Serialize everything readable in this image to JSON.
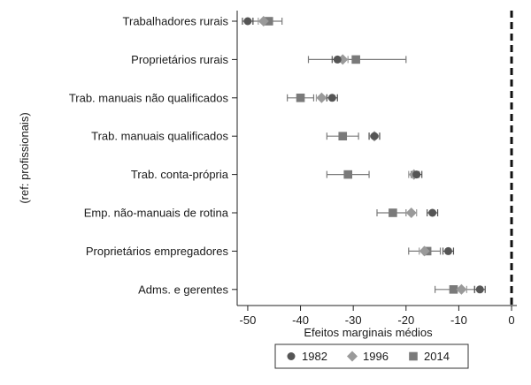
{
  "chart_data": {
    "type": "scatter",
    "subtype": "dot-whisker",
    "title": "",
    "xlabel": "Efeitos marginais médios",
    "ylabel": "(ref: profissionais)",
    "xlim": [
      -52,
      1
    ],
    "xticks": [
      -50,
      -40,
      -30,
      -20,
      -10,
      0
    ],
    "xtick_labels": [
      "-50",
      "-40",
      "-30",
      "-20",
      "-10",
      "0"
    ],
    "reference_line": 0,
    "grid": false,
    "legend_position": "bottom",
    "categories": [
      "Trabalhadores rurais",
      "Proprietários rurais",
      "Trab. manuais não qualificados",
      "Trab. manuais qualificados",
      "Trab. conta-própria",
      "Emp. não-manuais de rotina",
      "Proprietários empregadores",
      "Adms. e gerentes"
    ],
    "series": [
      {
        "name": "1982",
        "marker": "circle",
        "color": "#555555",
        "values": [
          -50,
          -33,
          -34,
          -26,
          -18,
          -15,
          -12,
          -6
        ],
        "ci_low": [
          -51,
          -34,
          -35,
          -27,
          -19,
          -16,
          -13,
          -7
        ],
        "ci_high": [
          -49,
          -32,
          -33,
          -25,
          -17,
          -14,
          -11,
          -5
        ]
      },
      {
        "name": "1996",
        "marker": "diamond",
        "color": "#9a9a9a",
        "values": [
          -47,
          -32,
          -36,
          -26,
          -18.5,
          -19,
          -16.5,
          -9.5
        ],
        "ci_low": [
          -48,
          -33,
          -37,
          -27,
          -19.5,
          -20,
          -17.5,
          -10.5
        ],
        "ci_high": [
          -46,
          -31,
          -35,
          -25,
          -17.5,
          -18,
          -15.5,
          -8.5
        ]
      },
      {
        "name": "2014",
        "marker": "square",
        "color": "#7a7a7a",
        "values": [
          -46,
          -29.5,
          -40,
          -32,
          -31,
          -22.5,
          -16,
          -11
        ],
        "ci_low": [
          -49,
          -38.5,
          -42.5,
          -35,
          -35,
          -25.5,
          -19.5,
          -14.5
        ],
        "ci_high": [
          -43.5,
          -20,
          -37.5,
          -29,
          -27,
          -20,
          -13.5,
          -7
        ]
      }
    ]
  }
}
